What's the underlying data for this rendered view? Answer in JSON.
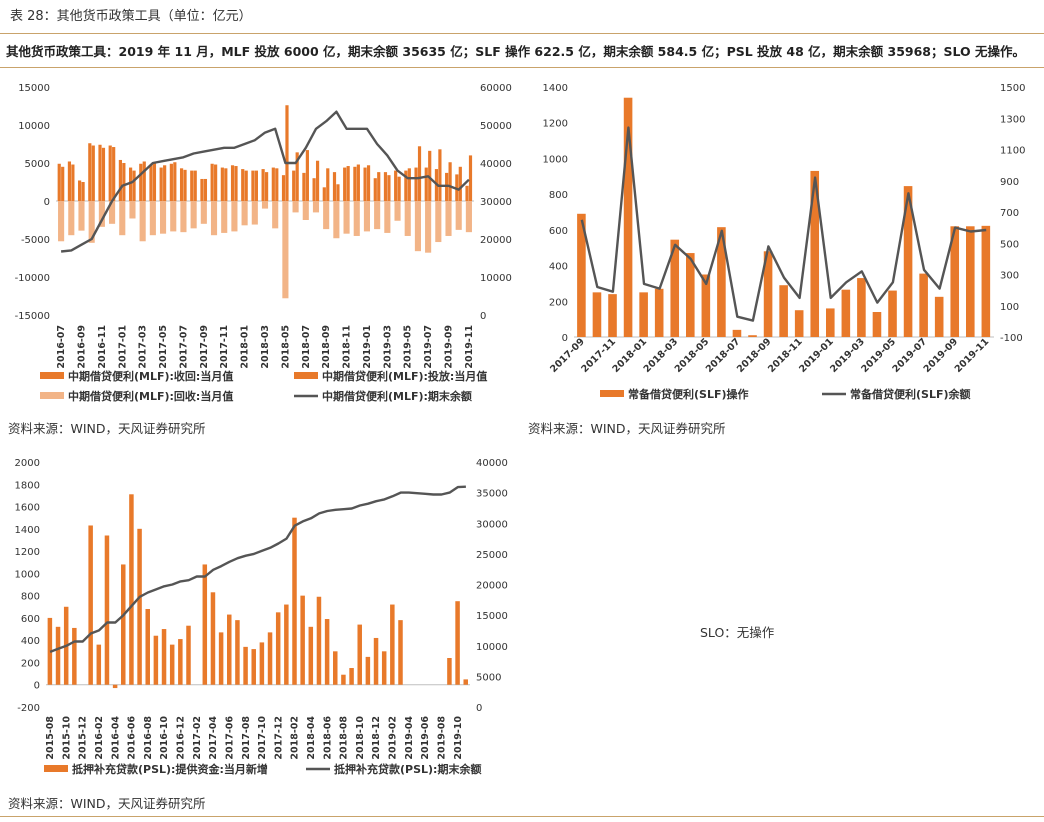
{
  "caption": "表 28：其他货币政策工具（单位：亿元）",
  "summary": "其他货币政策工具：2019 年 11 月，MLF 投放 6000 亿，期末余额 35635 亿；SLF 操作 622.5 亿，期末余额 584.5 亿；PSL 投放 48 亿，期末余额 35968；SLO 无操作。",
  "source": "资料来源：WIND，天风证券研究所",
  "slo_text": "SLO：无操作",
  "colors": {
    "bar_orange": "#e8792a",
    "bar_light": "#f2b487",
    "line": "#555555",
    "rule": "#c9a36b"
  },
  "chart_data": [
    {
      "id": "mlf",
      "type": "bar",
      "x": [
        "2016-07",
        "2016-08",
        "2016-09",
        "2016-10",
        "2016-11",
        "2016-12",
        "2017-01",
        "2017-02",
        "2017-03",
        "2017-04",
        "2017-05",
        "2017-06",
        "2017-07",
        "2017-08",
        "2017-09",
        "2017-10",
        "2017-11",
        "2017-12",
        "2018-01",
        "2018-02",
        "2018-03",
        "2018-04",
        "2018-05",
        "2018-06",
        "2018-07",
        "2018-08",
        "2018-09",
        "2018-10",
        "2018-11",
        "2018-12",
        "2019-01",
        "2019-02",
        "2019-03",
        "2019-04",
        "2019-05",
        "2019-06",
        "2019-07",
        "2019-08",
        "2019-09",
        "2019-10",
        "2019-11"
      ],
      "x_ticks": [
        "2016-07",
        "2016-09",
        "2016-11",
        "2017-01",
        "2017-03",
        "2017-05",
        "2017-07",
        "2017-09",
        "2017-11",
        "2018-01",
        "2018-03",
        "2018-05",
        "2018-07",
        "2018-09",
        "2018-11",
        "2019-01",
        "2019-03",
        "2019-05",
        "2019-07",
        "2019-09",
        "2019-11"
      ],
      "series": [
        {
          "name": "中期借贷便利(MLF):收回:当月值",
          "kind": "bar",
          "axis": "left",
          "color": "#e8792a",
          "values": [
            4900,
            5200,
            2700,
            7600,
            7400,
            7300,
            5400,
            4400,
            4900,
            4800,
            4400,
            4900,
            4300,
            4000,
            2900,
            4900,
            4400,
            4700,
            4200,
            4000,
            4200,
            4400,
            3400,
            4000,
            3700,
            3000,
            1800,
            3800,
            4400,
            4500,
            4400,
            3000,
            3800,
            4000,
            4000,
            4400,
            4400,
            4200,
            3700,
            3500,
            2000
          ]
        },
        {
          "name": "中期借贷便利(MLF):投放:当月值",
          "kind": "bar",
          "axis": "left",
          "color": "#e8792a",
          "values": [
            4500,
            4800,
            2500,
            7300,
            7000,
            7100,
            5000,
            4000,
            5200,
            5100,
            4700,
            5100,
            4100,
            4000,
            2900,
            4800,
            4300,
            4600,
            4000,
            4000,
            3800,
            4300,
            12600,
            6400,
            6700,
            5300,
            4300,
            2200,
            4600,
            4800,
            4700,
            3800,
            3400,
            3200,
            4300,
            7200,
            6600,
            6800,
            5100,
            4500,
            6000
          ]
        },
        {
          "name": "中期借贷便利(MLF):回收:当月值",
          "kind": "neg",
          "axis": "left",
          "color": "#f2b487",
          "values": [
            -5300,
            -4500,
            -3900,
            -5500,
            -3400,
            -3000,
            -4500,
            -2300,
            -5300,
            -4500,
            -4300,
            -4000,
            -4100,
            -3600,
            -3000,
            -4500,
            -4200,
            -4000,
            -3200,
            -3100,
            -1000,
            -3600,
            -12800,
            -1500,
            -2500,
            -1500,
            -3700,
            -4900,
            -4300,
            -4600,
            -4000,
            -3700,
            -4200,
            -2600,
            -4600,
            -6600,
            -6800,
            -5400,
            -4600,
            -3800,
            -4100
          ]
        },
        {
          "name": "中期借贷便利(MLF):期末余额",
          "kind": "line",
          "axis": "right",
          "color": "#555555",
          "values": [
            16700,
            17000,
            18500,
            20000,
            25000,
            30000,
            34000,
            35000,
            37500,
            40000,
            40500,
            41000,
            41500,
            42500,
            43000,
            43500,
            44000,
            44000,
            45000,
            46000,
            48000,
            49000,
            40000,
            40000,
            44000,
            49000,
            51000,
            53500,
            49000,
            49000,
            49000,
            45000,
            42000,
            38000,
            36000,
            36000,
            36500,
            34000,
            34000,
            33000,
            35600
          ]
        }
      ],
      "left_axis": {
        "min": -15000,
        "max": 15000,
        "ticks": [
          -15000,
          -10000,
          -5000,
          0,
          5000,
          10000,
          15000
        ]
      },
      "right_axis": {
        "min": 0,
        "max": 60000,
        "ticks": [
          0,
          10000,
          20000,
          30000,
          40000,
          50000,
          60000
        ]
      },
      "legend": [
        "中期借贷便利(MLF):收回:当月值",
        "中期借贷便利(MLF):投放:当月值",
        "中期借贷便利(MLF):回收:当月值",
        "中期借贷便利(MLF):期末余额"
      ]
    },
    {
      "id": "slf",
      "type": "bar",
      "x": [
        "2017-09",
        "2017-10",
        "2017-11",
        "2017-12",
        "2018-01",
        "2018-02",
        "2018-03",
        "2018-04",
        "2018-05",
        "2018-06",
        "2018-07",
        "2018-08",
        "2018-09",
        "2018-10",
        "2018-11",
        "2018-12",
        "2019-01",
        "2019-02",
        "2019-03",
        "2019-04",
        "2019-05",
        "2019-06",
        "2019-07",
        "2019-08",
        "2019-09",
        "2019-10",
        "2019-11"
      ],
      "x_ticks": [
        "2017-09",
        "2017-11",
        "2018-01",
        "2018-03",
        "2018-05",
        "2018-07",
        "2018-09",
        "2018-11",
        "2019-01",
        "2019-03",
        "2019-05",
        "2019-07",
        "2019-09",
        "2019-11"
      ],
      "series": [
        {
          "name": "常备借贷便利(SLF)操作",
          "kind": "bar",
          "axis": "left",
          "color": "#e8792a",
          "values": [
            690,
            250,
            240,
            1340,
            250,
            270,
            545,
            470,
            350,
            615,
            40,
            10,
            480,
            290,
            150,
            930,
            160,
            265,
            330,
            140,
            260,
            845,
            355,
            225,
            620,
            620,
            622.5
          ]
        },
        {
          "name": "常备借贷便利(SLF)余额",
          "kind": "line",
          "axis": "right",
          "color": "#555555",
          "values": [
            650,
            220,
            190,
            1240,
            240,
            210,
            490,
            400,
            240,
            580,
            30,
            5,
            480,
            280,
            150,
            920,
            150,
            250,
            320,
            120,
            250,
            820,
            330,
            210,
            600,
            575,
            584.5
          ]
        }
      ],
      "left_axis": {
        "min": 0,
        "max": 1400,
        "ticks": [
          0,
          200,
          400,
          600,
          800,
          1000,
          1200,
          1400
        ]
      },
      "right_axis": {
        "min": -100,
        "max": 1500,
        "ticks": [
          -100,
          100,
          300,
          500,
          700,
          900,
          1100,
          1300,
          1500
        ]
      },
      "legend": [
        "常备借贷便利(SLF)操作",
        "常备借贷便利(SLF)余额"
      ]
    },
    {
      "id": "psl",
      "type": "bar",
      "x": [
        "2015-08",
        "2015-09",
        "2015-10",
        "2015-11",
        "2015-12",
        "2016-01",
        "2016-02",
        "2016-03",
        "2016-04",
        "2016-05",
        "2016-06",
        "2016-07",
        "2016-08",
        "2016-09",
        "2016-10",
        "2016-11",
        "2016-12",
        "2017-01",
        "2017-02",
        "2017-03",
        "2017-04",
        "2017-05",
        "2017-06",
        "2017-07",
        "2017-08",
        "2017-09",
        "2017-10",
        "2017-11",
        "2017-12",
        "2018-01",
        "2018-02",
        "2018-03",
        "2018-04",
        "2018-05",
        "2018-06",
        "2018-07",
        "2018-08",
        "2018-09",
        "2018-10",
        "2018-11",
        "2018-12",
        "2019-01",
        "2019-02",
        "2019-03",
        "2019-04",
        "2019-05",
        "2019-06",
        "2019-07",
        "2019-08",
        "2019-09",
        "2019-10",
        "2019-11"
      ],
      "x_ticks": [
        "2015-08",
        "2015-10",
        "2015-12",
        "2016-02",
        "2016-04",
        "2016-06",
        "2016-08",
        "2016-10",
        "2016-12",
        "2017-02",
        "2017-04",
        "2017-06",
        "2017-08",
        "2017-10",
        "2017-12",
        "2018-02",
        "2018-04",
        "2018-06",
        "2018-08",
        "2018-10",
        "2018-12",
        "2019-02",
        "2019-04",
        "2019-06",
        "2019-08",
        "2019-10"
      ],
      "series": [
        {
          "name": "抵押补充贷款(PSL):提供资金:当月新增",
          "kind": "bar",
          "axis": "left",
          "color": "#e8792a",
          "values": [
            600,
            520,
            700,
            510,
            0,
            1430,
            360,
            1340,
            -30,
            1080,
            1710,
            1400,
            680,
            440,
            500,
            360,
            410,
            530,
            0,
            1080,
            830,
            470,
            630,
            580,
            340,
            320,
            380,
            470,
            650,
            720,
            1500,
            800,
            520,
            790,
            590,
            300,
            90,
            150,
            540,
            250,
            420,
            300,
            720,
            580,
            0,
            0,
            0,
            0,
            0,
            240,
            750,
            48
          ]
        },
        {
          "name": "抵押补充贷款(PSL):期末余额",
          "kind": "line",
          "axis": "right",
          "color": "#555555",
          "values": [
            9000,
            9500,
            10000,
            10700,
            10700,
            12000,
            12500,
            13800,
            13800,
            15000,
            16500,
            18000,
            18700,
            19200,
            19700,
            20000,
            20500,
            20700,
            21300,
            21300,
            22400,
            23000,
            23700,
            24300,
            24700,
            25000,
            25500,
            26000,
            26700,
            27500,
            29600,
            30300,
            30800,
            31600,
            32000,
            32200,
            32300,
            32400,
            32900,
            33200,
            33600,
            33900,
            34400,
            35000,
            35000,
            34900,
            34800,
            34700,
            34700,
            35000,
            35900,
            35968
          ]
        }
      ],
      "left_axis": {
        "min": -200,
        "max": 2000,
        "ticks": [
          -200,
          0,
          200,
          400,
          600,
          800,
          1000,
          1200,
          1400,
          1600,
          1800,
          2000
        ]
      },
      "right_axis": {
        "min": 0,
        "max": 40000,
        "ticks": [
          0,
          5000,
          10000,
          15000,
          20000,
          25000,
          30000,
          35000,
          40000
        ]
      },
      "legend": [
        "抵押补充贷款(PSL):提供资金:当月新增",
        "抵押补充贷款(PSL):期末余额"
      ]
    }
  ]
}
